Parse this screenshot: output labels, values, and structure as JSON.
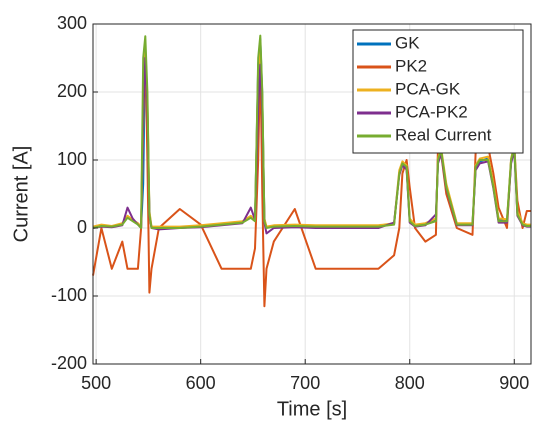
{
  "chart_data": {
    "type": "line",
    "x_label": "Time [s]",
    "y_label": "Current [A]",
    "x": [
      497,
      505,
      515,
      525,
      530,
      535,
      540,
      543,
      545,
      547,
      549,
      551,
      553,
      560,
      580,
      600,
      620,
      640,
      648,
      652,
      655,
      657,
      659,
      661,
      663,
      670,
      690,
      710,
      740,
      770,
      785,
      790,
      793,
      797,
      800,
      805,
      815,
      825,
      827,
      830,
      835,
      845,
      860,
      863,
      867,
      875,
      880,
      885,
      893,
      897,
      900,
      903,
      908,
      912,
      916
    ],
    "series": [
      {
        "name": "GK",
        "color": "#0072BD",
        "values": [
          1,
          4,
          2,
          6,
          16,
          11,
          6,
          1,
          65,
          275,
          150,
          22,
          1,
          1,
          1,
          3,
          6,
          9,
          16,
          11,
          240,
          278,
          195,
          12,
          1,
          3,
          4,
          3,
          3,
          3,
          6,
          82,
          96,
          88,
          12,
          4,
          6,
          12,
          98,
          112,
          62,
          6,
          6,
          88,
          98,
          102,
          62,
          12,
          11,
          98,
          118,
          22,
          6,
          4,
          4
        ]
      },
      {
        "name": "PK2",
        "color": "#D95319",
        "values": [
          -70,
          0,
          -60,
          -20,
          -60,
          -60,
          -60,
          0,
          200,
          270,
          100,
          -95,
          -60,
          0,
          28,
          5,
          -60,
          -60,
          -60,
          -30,
          100,
          255,
          50,
          -115,
          -60,
          -20,
          28,
          -60,
          -60,
          -60,
          -40,
          0,
          80,
          100,
          60,
          0,
          -20,
          -10,
          120,
          110,
          50,
          0,
          -10,
          110,
          115,
          120,
          80,
          30,
          0,
          100,
          120,
          40,
          0,
          25,
          25
        ]
      },
      {
        "name": "PCA-GK",
        "color": "#EDB120",
        "values": [
          2,
          5,
          3,
          7,
          18,
          12,
          7,
          2,
          150,
          265,
          190,
          25,
          2,
          2,
          2,
          4,
          7,
          10,
          18,
          12,
          230,
          270,
          190,
          14,
          2,
          4,
          5,
          4,
          4,
          4,
          7,
          85,
          98,
          92,
          14,
          5,
          7,
          14,
          102,
          118,
          65,
          7,
          7,
          92,
          102,
          105,
          65,
          14,
          13,
          102,
          122,
          25,
          7,
          5,
          5
        ]
      },
      {
        "name": "PCA-PK2",
        "color": "#7E2F8E",
        "values": [
          0,
          2,
          1,
          4,
          30,
          14,
          5,
          0,
          160,
          250,
          180,
          18,
          0,
          -2,
          0,
          1,
          4,
          7,
          30,
          12,
          180,
          240,
          170,
          8,
          -8,
          0,
          1,
          0,
          0,
          0,
          8,
          78,
          92,
          86,
          8,
          2,
          4,
          20,
          95,
          110,
          58,
          4,
          4,
          85,
          95,
          98,
          58,
          8,
          8,
          95,
          115,
          18,
          4,
          2,
          2
        ]
      },
      {
        "name": "Real Current",
        "color": "#77AC30",
        "values": [
          0,
          3,
          2,
          5,
          15,
          10,
          5,
          0,
          250,
          282,
          200,
          20,
          0,
          0,
          0,
          2,
          5,
          8,
          15,
          10,
          250,
          283,
          200,
          10,
          0,
          2,
          3,
          2,
          2,
          2,
          5,
          80,
          95,
          90,
          10,
          3,
          5,
          10,
          100,
          115,
          60,
          5,
          5,
          90,
          100,
          100,
          60,
          10,
          10,
          100,
          120,
          20,
          5,
          3,
          3
        ]
      }
    ],
    "xlim": [
      497,
      916
    ],
    "xticks": [
      500,
      600,
      700,
      800,
      900
    ],
    "ylim": [
      -200,
      300
    ],
    "yticks": [
      -200,
      -100,
      0,
      100,
      200,
      300
    ],
    "grid": true,
    "legend": "top-right"
  }
}
